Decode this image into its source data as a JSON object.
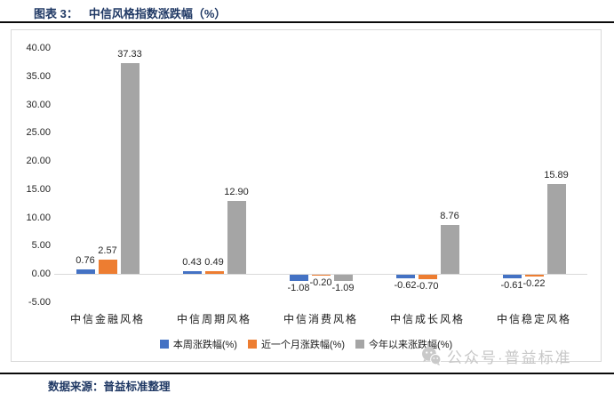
{
  "header": {
    "figure_label": "图表 3：",
    "title": "中信风格指数涨跌幅（%）"
  },
  "chart_data": {
    "type": "bar",
    "title": "中信风格指数涨跌幅（%）",
    "categories": [
      "中信金融风格",
      "中信周期风格",
      "中信消费风格",
      "中信成长风格",
      "中信稳定风格"
    ],
    "series": [
      {
        "name": "本周涨跌幅(%)",
        "color": "#4472C4",
        "values": [
          0.76,
          0.43,
          -1.08,
          -0.62,
          -0.61
        ]
      },
      {
        "name": "近一个月涨跌幅(%)",
        "color": "#ED7D31",
        "values": [
          2.57,
          0.49,
          -0.2,
          -0.7,
          -0.22
        ]
      },
      {
        "name": "今年以来涨跌幅(%)",
        "color": "#A5A5A5",
        "values": [
          37.33,
          12.9,
          -1.09,
          8.76,
          15.89
        ]
      }
    ],
    "ylim": [
      -5,
      40
    ],
    "ytick_step": 5,
    "grid": false,
    "legend_position": "bottom",
    "value_labels": true,
    "axis_line_color": "#D9D9D9"
  },
  "watermark": {
    "icon": "wechat-icon",
    "text": "公众号·普益标准"
  },
  "footer": {
    "source": "数据来源：普益标准整理"
  }
}
